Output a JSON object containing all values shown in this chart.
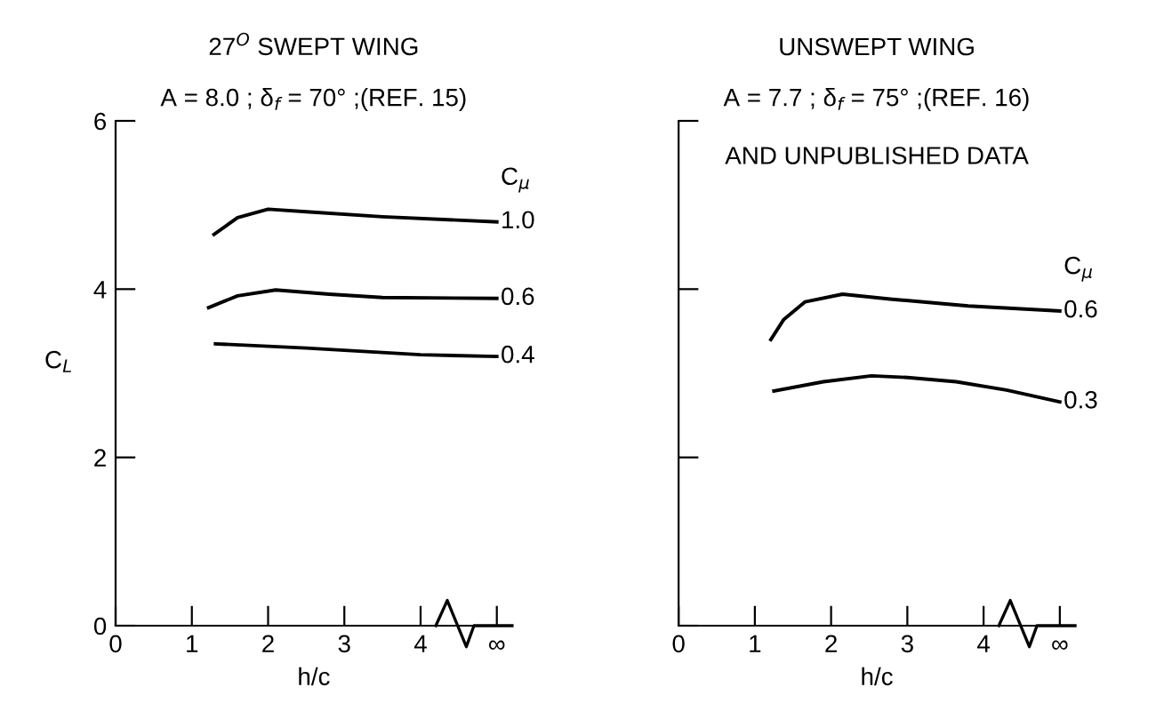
{
  "chart_data": [
    {
      "type": "line",
      "title": "27$^{O}$ SWEPT WING",
      "subtitle": "A = 8.0 ; δ$_{f}$ = 70° ;(REF. 15)",
      "xlabel": "h/c",
      "ylabel": "C$_{L}$",
      "legend_title": "C$_{μ}$",
      "legend": false,
      "grid": false,
      "marker": "none",
      "line_style": "solid",
      "xlim": [
        0,
        5.2
      ],
      "ylim": [
        0,
        6
      ],
      "xticks": [
        0,
        1,
        2,
        3,
        4,
        {
          "value": 5,
          "label": "∞"
        }
      ],
      "yticks": [
        0,
        2,
        4,
        6
      ],
      "series": [
        {
          "name": "1.0",
          "color": "#000000",
          "x": [
            1.29,
            1.6,
            2.0,
            2.5,
            3.5,
            5.0
          ],
          "values": [
            4.65,
            4.85,
            4.95,
            4.92,
            4.86,
            4.8
          ]
        },
        {
          "name": "0.6",
          "color": "#000000",
          "x": [
            1.22,
            1.6,
            2.1,
            2.8,
            3.5,
            5.0
          ],
          "values": [
            3.78,
            3.92,
            3.99,
            3.94,
            3.9,
            3.89
          ]
        },
        {
          "name": "0.4",
          "color": "#000000",
          "x": [
            1.31,
            2.5,
            4.0,
            5.0
          ],
          "values": [
            3.35,
            3.3,
            3.22,
            3.2
          ]
        }
      ]
    },
    {
      "type": "line",
      "title": "UNSWEPT WING",
      "subtitle": "A = 7.7 ; δ$_{f}$ = 75° ;(REF. 16)",
      "xlabel": "h/c",
      "legend_title": "C$_{μ}$",
      "legend": false,
      "grid": false,
      "marker": "none",
      "line_style": "solid",
      "tick_labels": "x",
      "annotations": [
        "AND UNPUBLISHED DATA"
      ],
      "xlim": [
        0,
        5.2
      ],
      "ylim": [
        0,
        6
      ],
      "xticks": [
        0,
        1,
        2,
        3,
        4,
        {
          "value": 5,
          "label": "∞"
        }
      ],
      "yticks": [
        {
          "value": 0,
          "label": null
        },
        {
          "value": 2,
          "label": null
        },
        {
          "value": 4,
          "label": null
        },
        {
          "value": 6,
          "label": null
        }
      ],
      "series": [
        {
          "name": "0.6",
          "color": "#000000",
          "x": [
            1.21,
            1.38,
            1.66,
            2.15,
            2.8,
            3.8,
            5.0
          ],
          "values": [
            3.4,
            3.64,
            3.85,
            3.94,
            3.88,
            3.8,
            3.74
          ]
        },
        {
          "name": "0.3",
          "color": "#000000",
          "x": [
            1.25,
            1.9,
            2.53,
            3.0,
            3.64,
            4.3,
            5.0
          ],
          "values": [
            2.79,
            2.9,
            2.97,
            2.95,
            2.9,
            2.8,
            2.66
          ]
        }
      ]
    }
  ]
}
